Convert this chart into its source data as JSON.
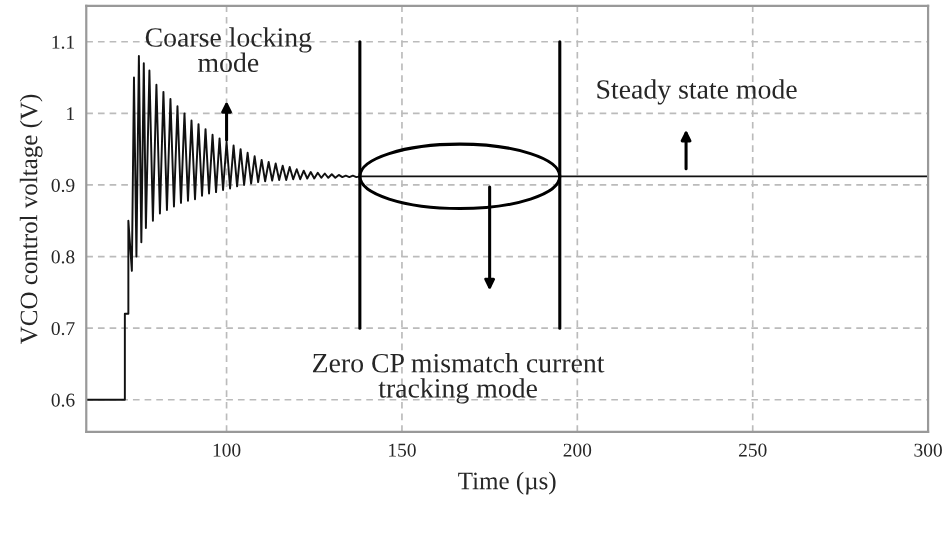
{
  "chart_data": {
    "type": "line",
    "xlabel": "Time (µs)",
    "ylabel": "VCO control voltage (V)",
    "annotations": [
      "Coarse locking\nmode",
      "Zero CP mismatch current\ntracking mode",
      "Steady state mode"
    ],
    "xlim": [
      60,
      300
    ],
    "ylim": [
      0.555,
      1.15
    ],
    "xticks": [
      100,
      150,
      200,
      250,
      300
    ],
    "yticks": [
      0.6,
      0.7,
      0.8,
      0.9,
      1,
      1.1
    ],
    "grid": true,
    "marker": "none",
    "line_style": "solid",
    "ref_lines": [
      {
        "axis": "x",
        "value": 138,
        "color": "#000000"
      },
      {
        "axis": "x",
        "value": 195,
        "color": "#000000"
      }
    ],
    "series": [
      {
        "color": "#111111",
        "x": [
          60,
          71,
          71,
          72,
          72,
          73,
          73.6,
          74.3,
          75,
          75.7,
          76.4,
          77,
          78,
          79,
          80,
          81,
          82,
          83,
          84,
          85,
          86,
          87,
          88,
          89,
          90,
          91,
          92,
          93,
          94,
          95,
          96,
          97,
          98,
          99,
          100,
          101,
          102,
          103,
          104,
          105,
          106,
          107,
          108,
          109,
          110,
          111,
          112,
          113,
          114,
          115,
          116,
          117,
          118,
          119,
          120,
          121,
          122,
          123,
          124,
          125,
          126,
          127,
          128,
          129,
          130,
          131,
          132,
          133,
          134,
          135,
          136,
          137,
          138,
          140,
          195,
          300
        ],
        "values": [
          0.6,
          0.6,
          0.72,
          0.72,
          0.85,
          0.78,
          1.05,
          0.8,
          1.08,
          0.82,
          1.07,
          0.84,
          1.06,
          0.85,
          1.04,
          0.86,
          1.03,
          0.865,
          1.02,
          0.87,
          1.01,
          0.875,
          1.0,
          0.878,
          0.99,
          0.88,
          0.985,
          0.885,
          0.978,
          0.888,
          0.97,
          0.89,
          0.965,
          0.893,
          0.96,
          0.895,
          0.955,
          0.898,
          0.95,
          0.9,
          0.945,
          0.902,
          0.94,
          0.904,
          0.935,
          0.905,
          0.932,
          0.906,
          0.93,
          0.907,
          0.927,
          0.907,
          0.925,
          0.908,
          0.922,
          0.908,
          0.92,
          0.909,
          0.918,
          0.909,
          0.917,
          0.91,
          0.916,
          0.91,
          0.915,
          0.91,
          0.914,
          0.911,
          0.913,
          0.911,
          0.913,
          0.911,
          0.912,
          0.912,
          0.912,
          0.912
        ]
      }
    ]
  }
}
